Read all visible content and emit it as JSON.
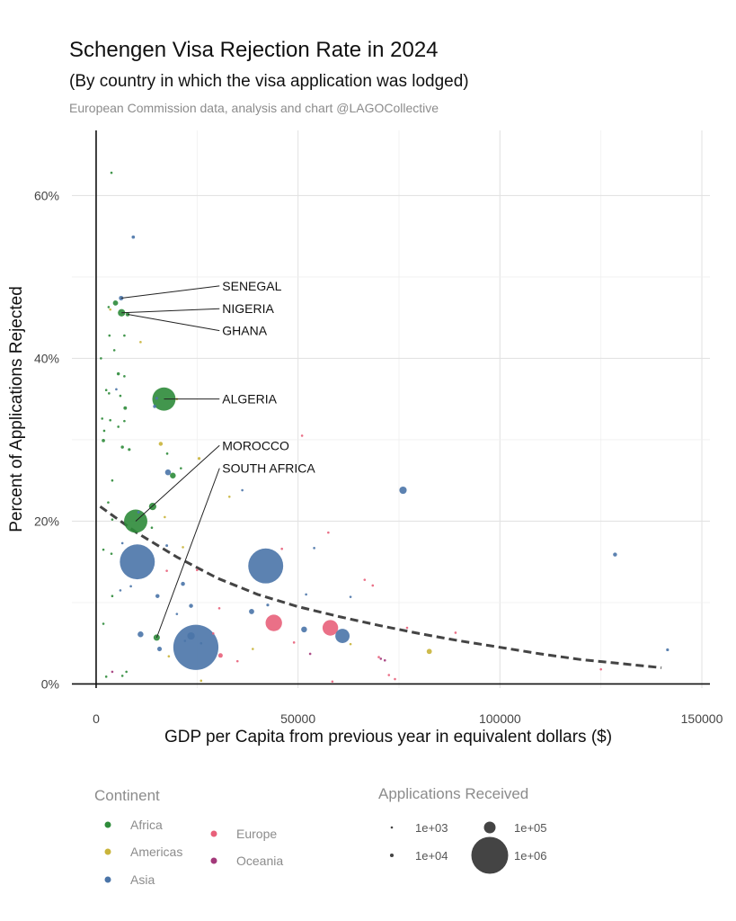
{
  "chart_data": {
    "type": "scatter",
    "title": "Schengen Visa Rejection Rate in 2024",
    "subtitle": "(By country in which the visa application was lodged)",
    "caption": "European Commission data, analysis and chart @LAGOCollective",
    "xlabel": "GDP per Capita from previous year in equivalent dollars ($)",
    "ylabel": "Percent of Applications Rejected",
    "xlim": [
      -6000,
      152000
    ],
    "ylim": [
      -0.5,
      68
    ],
    "xticks": [
      {
        "value": 0,
        "label": "0"
      },
      {
        "value": 50000,
        "label": "50000"
      },
      {
        "value": 100000,
        "label": "100000"
      },
      {
        "value": 150000,
        "label": "150000"
      }
    ],
    "yticks": [
      {
        "value": 0,
        "label": "0%"
      },
      {
        "value": 20,
        "label": "20%"
      },
      {
        "value": 40,
        "label": "40%"
      },
      {
        "value": 60,
        "label": "60%"
      }
    ],
    "grid": true,
    "colors": {
      "Africa": "#2e8b3a",
      "Americas": "#c9b43a",
      "Asia": "#4a74a8",
      "Europe": "#e8607a",
      "Oceania": "#a3397a"
    },
    "trend": {
      "style": "dashed",
      "color": "#444444",
      "points": [
        [
          1000,
          21.8
        ],
        [
          10000,
          18.6
        ],
        [
          20000,
          15.6
        ],
        [
          30000,
          13.0
        ],
        [
          40000,
          11.0
        ],
        [
          50000,
          9.5
        ],
        [
          60000,
          8.3
        ],
        [
          70000,
          7.2
        ],
        [
          80000,
          6.2
        ],
        [
          90000,
          5.3
        ],
        [
          100000,
          4.5
        ],
        [
          110000,
          3.7
        ],
        [
          120000,
          3.0
        ],
        [
          130000,
          2.5
        ],
        [
          140000,
          2.0
        ]
      ]
    },
    "points": [
      {
        "x": 3800,
        "y": 62.8,
        "continent": "Africa",
        "apps": 2000
      },
      {
        "x": 9200,
        "y": 54.9,
        "continent": "Asia",
        "apps": 8000
      },
      {
        "x": 6200,
        "y": 47.4,
        "continent": "Asia",
        "apps": 15000
      },
      {
        "x": 4800,
        "y": 46.8,
        "continent": "Africa",
        "apps": 20000
      },
      {
        "x": 3100,
        "y": 46.3,
        "continent": "Africa",
        "apps": 1500
      },
      {
        "x": 3500,
        "y": 46.0,
        "continent": "Americas",
        "apps": 1500
      },
      {
        "x": 6300,
        "y": 45.6,
        "continent": "Africa",
        "apps": 40000
      },
      {
        "x": 7800,
        "y": 45.4,
        "continent": "Africa",
        "apps": 12000
      },
      {
        "x": 3300,
        "y": 42.8,
        "continent": "Africa",
        "apps": 2500
      },
      {
        "x": 7000,
        "y": 42.8,
        "continent": "Africa",
        "apps": 4000
      },
      {
        "x": 11000,
        "y": 42.0,
        "continent": "Americas",
        "apps": 3500
      },
      {
        "x": 4500,
        "y": 41.0,
        "continent": "Africa",
        "apps": 3000
      },
      {
        "x": 1200,
        "y": 40.0,
        "continent": "Africa",
        "apps": 1200
      },
      {
        "x": 5500,
        "y": 38.1,
        "continent": "Africa",
        "apps": 7000
      },
      {
        "x": 7000,
        "y": 37.8,
        "continent": "Africa",
        "apps": 2500
      },
      {
        "x": 2500,
        "y": 36.1,
        "continent": "Africa",
        "apps": 2500
      },
      {
        "x": 3200,
        "y": 35.7,
        "continent": "Africa",
        "apps": 3500
      },
      {
        "x": 5000,
        "y": 36.2,
        "continent": "Asia",
        "apps": 2500
      },
      {
        "x": 6000,
        "y": 35.4,
        "continent": "Africa",
        "apps": 2000
      },
      {
        "x": 15000,
        "y": 35.1,
        "continent": "Asia",
        "apps": 6000
      },
      {
        "x": 20000,
        "y": 35.0,
        "continent": "Americas",
        "apps": 1500
      },
      {
        "x": 16800,
        "y": 35.0,
        "continent": "Africa",
        "apps": 400000
      },
      {
        "x": 14500,
        "y": 34.1,
        "continent": "Asia",
        "apps": 8000
      },
      {
        "x": 7200,
        "y": 33.9,
        "continent": "Africa",
        "apps": 9000
      },
      {
        "x": 1500,
        "y": 32.6,
        "continent": "Africa",
        "apps": 1500
      },
      {
        "x": 3500,
        "y": 32.4,
        "continent": "Africa",
        "apps": 3000
      },
      {
        "x": 7000,
        "y": 32.3,
        "continent": "Africa",
        "apps": 3500
      },
      {
        "x": 5500,
        "y": 31.6,
        "continent": "Africa",
        "apps": 2000
      },
      {
        "x": 2000,
        "y": 31.1,
        "continent": "Africa",
        "apps": 3000
      },
      {
        "x": 1800,
        "y": 29.9,
        "continent": "Africa",
        "apps": 8000
      },
      {
        "x": 6500,
        "y": 29.1,
        "continent": "Africa",
        "apps": 7000
      },
      {
        "x": 8200,
        "y": 28.8,
        "continent": "Africa",
        "apps": 6000
      },
      {
        "x": 16000,
        "y": 29.5,
        "continent": "Americas",
        "apps": 12000
      },
      {
        "x": 51000,
        "y": 30.5,
        "continent": "Europe",
        "apps": 1000
      },
      {
        "x": 17600,
        "y": 28.3,
        "continent": "Africa",
        "apps": 3000
      },
      {
        "x": 25500,
        "y": 27.7,
        "continent": "Americas",
        "apps": 6000
      },
      {
        "x": 21000,
        "y": 26.5,
        "continent": "Africa",
        "apps": 3500
      },
      {
        "x": 17800,
        "y": 26.0,
        "continent": "Asia",
        "apps": 25000
      },
      {
        "x": 19000,
        "y": 25.6,
        "continent": "Africa",
        "apps": 25000
      },
      {
        "x": 4000,
        "y": 25.0,
        "continent": "Africa",
        "apps": 2500
      },
      {
        "x": 36200,
        "y": 23.8,
        "continent": "Asia",
        "apps": 2000
      },
      {
        "x": 33000,
        "y": 23.0,
        "continent": "Americas",
        "apps": 1200
      },
      {
        "x": 76000,
        "y": 23.8,
        "continent": "Asia",
        "apps": 40000
      },
      {
        "x": 3000,
        "y": 22.3,
        "continent": "Africa",
        "apps": 2000
      },
      {
        "x": 14000,
        "y": 21.8,
        "continent": "Africa",
        "apps": 40000
      },
      {
        "x": 10500,
        "y": 21.1,
        "continent": "Asia",
        "apps": 5000
      },
      {
        "x": 17000,
        "y": 20.5,
        "continent": "Americas",
        "apps": 1500
      },
      {
        "x": 4000,
        "y": 20.2,
        "continent": "Africa",
        "apps": 3000
      },
      {
        "x": 9800,
        "y": 20.0,
        "continent": "Africa",
        "apps": 400000
      },
      {
        "x": 13800,
        "y": 19.2,
        "continent": "Africa",
        "apps": 4000
      },
      {
        "x": 57500,
        "y": 18.6,
        "continent": "Europe",
        "apps": 1200
      },
      {
        "x": 6500,
        "y": 17.3,
        "continent": "Asia",
        "apps": 2000
      },
      {
        "x": 17500,
        "y": 17.0,
        "continent": "Asia",
        "apps": 5000
      },
      {
        "x": 21500,
        "y": 16.8,
        "continent": "Americas",
        "apps": 4000
      },
      {
        "x": 54000,
        "y": 16.7,
        "continent": "Asia",
        "apps": 3500
      },
      {
        "x": 46000,
        "y": 16.6,
        "continent": "Europe",
        "apps": 1000
      },
      {
        "x": 1800,
        "y": 16.5,
        "continent": "Africa",
        "apps": 2000
      },
      {
        "x": 3800,
        "y": 16.0,
        "continent": "Africa",
        "apps": 1500
      },
      {
        "x": 128500,
        "y": 15.9,
        "continent": "Asia",
        "apps": 12000
      },
      {
        "x": 10200,
        "y": 15.0,
        "continent": "Asia",
        "apps": 900000
      },
      {
        "x": 42000,
        "y": 14.5,
        "continent": "Asia",
        "apps": 900000
      },
      {
        "x": 25000,
        "y": 14.0,
        "continent": "Europe",
        "apps": 1500
      },
      {
        "x": 17500,
        "y": 13.9,
        "continent": "Europe",
        "apps": 2500
      },
      {
        "x": 66500,
        "y": 12.8,
        "continent": "Europe",
        "apps": 2000
      },
      {
        "x": 21500,
        "y": 12.3,
        "continent": "Asia",
        "apps": 12000
      },
      {
        "x": 8600,
        "y": 12.0,
        "continent": "Asia",
        "apps": 2500
      },
      {
        "x": 68500,
        "y": 12.1,
        "continent": "Europe",
        "apps": 1000
      },
      {
        "x": 6000,
        "y": 11.5,
        "continent": "Asia",
        "apps": 2500
      },
      {
        "x": 15200,
        "y": 10.8,
        "continent": "Asia",
        "apps": 12000
      },
      {
        "x": 52000,
        "y": 11.0,
        "continent": "Asia",
        "apps": 2000
      },
      {
        "x": 63000,
        "y": 10.7,
        "continent": "Asia",
        "apps": 3500
      },
      {
        "x": 4000,
        "y": 10.8,
        "continent": "Africa",
        "apps": 1200
      },
      {
        "x": 23500,
        "y": 9.6,
        "continent": "Asia",
        "apps": 12000
      },
      {
        "x": 42500,
        "y": 9.7,
        "continent": "Asia",
        "apps": 6000
      },
      {
        "x": 30500,
        "y": 9.3,
        "continent": "Europe",
        "apps": 2000
      },
      {
        "x": 38500,
        "y": 8.9,
        "continent": "Asia",
        "apps": 20000
      },
      {
        "x": 20000,
        "y": 8.6,
        "continent": "Asia",
        "apps": 2000
      },
      {
        "x": 1800,
        "y": 7.4,
        "continent": "Africa",
        "apps": 4000
      },
      {
        "x": 44000,
        "y": 7.5,
        "continent": "Europe",
        "apps": 200000
      },
      {
        "x": 58000,
        "y": 6.9,
        "continent": "Europe",
        "apps": 180000
      },
      {
        "x": 77000,
        "y": 6.9,
        "continent": "Europe",
        "apps": 1500
      },
      {
        "x": 51500,
        "y": 6.7,
        "continent": "Asia",
        "apps": 25000
      },
      {
        "x": 89000,
        "y": 6.3,
        "continent": "Europe",
        "apps": 1000
      },
      {
        "x": 29000,
        "y": 6.2,
        "continent": "Europe",
        "apps": 4000
      },
      {
        "x": 11000,
        "y": 6.1,
        "continent": "Asia",
        "apps": 25000
      },
      {
        "x": 15000,
        "y": 5.7,
        "continent": "Africa",
        "apps": 30000
      },
      {
        "x": 23500,
        "y": 5.9,
        "continent": "Asia",
        "apps": 40000
      },
      {
        "x": 61000,
        "y": 5.9,
        "continent": "Asia",
        "apps": 150000
      },
      {
        "x": 22000,
        "y": 5.3,
        "continent": "Asia",
        "apps": 3000
      },
      {
        "x": 49000,
        "y": 5.1,
        "continent": "Europe",
        "apps": 1500
      },
      {
        "x": 26000,
        "y": 5.0,
        "continent": "Asia",
        "apps": 2000
      },
      {
        "x": 63000,
        "y": 4.9,
        "continent": "Americas",
        "apps": 3500
      },
      {
        "x": 24700,
        "y": 4.5,
        "continent": "Asia",
        "apps": 1500000
      },
      {
        "x": 15700,
        "y": 4.3,
        "continent": "Asia",
        "apps": 15000
      },
      {
        "x": 38800,
        "y": 4.3,
        "continent": "Americas",
        "apps": 1200
      },
      {
        "x": 82500,
        "y": 4.0,
        "continent": "Americas",
        "apps": 20000
      },
      {
        "x": 141500,
        "y": 4.2,
        "continent": "Asia",
        "apps": 6000
      },
      {
        "x": 53000,
        "y": 3.7,
        "continent": "Oceania",
        "apps": 2000
      },
      {
        "x": 30800,
        "y": 3.5,
        "continent": "Europe",
        "apps": 15000
      },
      {
        "x": 18000,
        "y": 3.4,
        "continent": "Americas",
        "apps": 1000
      },
      {
        "x": 70000,
        "y": 3.3,
        "continent": "Europe",
        "apps": 1500
      },
      {
        "x": 70500,
        "y": 3.1,
        "continent": "Oceania",
        "apps": 4000
      },
      {
        "x": 71500,
        "y": 2.9,
        "continent": "Oceania",
        "apps": 1500
      },
      {
        "x": 35000,
        "y": 2.8,
        "continent": "Europe",
        "apps": 1000
      },
      {
        "x": 125000,
        "y": 1.8,
        "continent": "Europe",
        "apps": 4000
      },
      {
        "x": 7500,
        "y": 1.5,
        "continent": "Africa",
        "apps": 1000
      },
      {
        "x": 4000,
        "y": 1.5,
        "continent": "Oceania",
        "apps": 1000
      },
      {
        "x": 72500,
        "y": 1.1,
        "continent": "Europe",
        "apps": 1000
      },
      {
        "x": 6500,
        "y": 1.0,
        "continent": "Africa",
        "apps": 1500
      },
      {
        "x": 2500,
        "y": 0.9,
        "continent": "Africa",
        "apps": 1000
      },
      {
        "x": 74000,
        "y": 0.6,
        "continent": "Europe",
        "apps": 1500
      },
      {
        "x": 58500,
        "y": 0.3,
        "continent": "Europe",
        "apps": 2000
      },
      {
        "x": 26000,
        "y": 0.4,
        "continent": "Americas",
        "apps": 1000
      }
    ],
    "annotations": [
      {
        "label": "SENEGAL",
        "x": 6200,
        "y": 47.4,
        "label_x": 31000,
        "label_y": 48.9
      },
      {
        "label": "NIGERIA",
        "x": 6300,
        "y": 45.6,
        "label_x": 31000,
        "label_y": 46.1
      },
      {
        "label": "GHANA",
        "x": 7800,
        "y": 45.4,
        "label_x": 31000,
        "label_y": 43.4
      },
      {
        "label": "ALGERIA",
        "x": 16800,
        "y": 35.0,
        "label_x": 31000,
        "label_y": 35.0
      },
      {
        "label": "MOROCCO",
        "x": 9800,
        "y": 20.0,
        "label_x": 31000,
        "label_y": 29.3
      },
      {
        "label": "SOUTH AFRICA",
        "x": 15000,
        "y": 5.7,
        "label_x": 31000,
        "label_y": 26.5
      }
    ],
    "legend": {
      "color_title": "Continent",
      "color_entries": [
        "Africa",
        "Americas",
        "Asia",
        "Europe",
        "Oceania"
      ],
      "size_title": "Applications Received",
      "size_entries": [
        {
          "label": "1e+03",
          "apps": 1000
        },
        {
          "label": "1e+04",
          "apps": 10000
        },
        {
          "label": "1e+05",
          "apps": 100000
        },
        {
          "label": "1e+06",
          "apps": 1000000
        }
      ],
      "placement": "bottom"
    }
  }
}
